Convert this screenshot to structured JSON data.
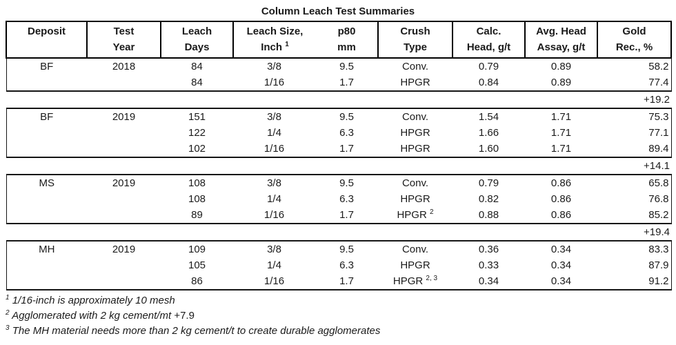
{
  "title": "Column Leach Test Summaries",
  "colors": {
    "text": "#1a1a1a",
    "border": "#000000",
    "background": "#ffffff"
  },
  "table": {
    "headers": [
      {
        "line1": "Deposit",
        "line2": ""
      },
      {
        "line1": "Test",
        "line2": "Year"
      },
      {
        "line1": "Leach",
        "line2": "Days"
      },
      {
        "line1": "Leach Size,",
        "line2": "Inch",
        "line2_sup": "1"
      },
      {
        "line1": "p80",
        "line2": "mm"
      },
      {
        "line1": "Crush",
        "line2": "Type"
      },
      {
        "line1": "Calc.",
        "line2": "Head, g/t"
      },
      {
        "line1": "Avg. Head",
        "line2": "Assay, g/t"
      },
      {
        "line1": "Gold",
        "line2": "Rec., %"
      }
    ],
    "groups": [
      {
        "deposit": "BF",
        "year": "2018",
        "rows": [
          {
            "days": "84",
            "size": "3/8",
            "p80": "9.5",
            "crush": "Conv.",
            "crush_sup": "",
            "calc_head": "0.79",
            "avg_head": "0.89",
            "gold_rec": "58.2"
          },
          {
            "days": "84",
            "size": "1/16",
            "p80": "1.7",
            "crush": "HPGR",
            "crush_sup": "",
            "calc_head": "0.84",
            "avg_head": "0.89",
            "gold_rec": "77.4"
          }
        ],
        "summary": "+19.2"
      },
      {
        "deposit": "BF",
        "year": "2019",
        "rows": [
          {
            "days": "151",
            "size": "3/8",
            "p80": "9.5",
            "crush": "Conv.",
            "crush_sup": "",
            "calc_head": "1.54",
            "avg_head": "1.71",
            "gold_rec": "75.3"
          },
          {
            "days": "122",
            "size": "1/4",
            "p80": "6.3",
            "crush": "HPGR",
            "crush_sup": "",
            "calc_head": "1.66",
            "avg_head": "1.71",
            "gold_rec": "77.1"
          },
          {
            "days": "102",
            "size": "1/16",
            "p80": "1.7",
            "crush": "HPGR",
            "crush_sup": "",
            "calc_head": "1.60",
            "avg_head": "1.71",
            "gold_rec": "89.4"
          }
        ],
        "summary": "+14.1"
      },
      {
        "deposit": "MS",
        "year": "2019",
        "rows": [
          {
            "days": "108",
            "size": "3/8",
            "p80": "9.5",
            "crush": "Conv.",
            "crush_sup": "",
            "calc_head": "0.79",
            "avg_head": "0.86",
            "gold_rec": "65.8"
          },
          {
            "days": "108",
            "size": "1/4",
            "p80": "6.3",
            "crush": "HPGR",
            "crush_sup": "",
            "calc_head": "0.82",
            "avg_head": "0.86",
            "gold_rec": "76.8"
          },
          {
            "days": "89",
            "size": "1/16",
            "p80": "1.7",
            "crush": "HPGR",
            "crush_sup": "2",
            "calc_head": "0.88",
            "avg_head": "0.86",
            "gold_rec": "85.2"
          }
        ],
        "summary": "+19.4"
      },
      {
        "deposit": "MH",
        "year": "2019",
        "rows": [
          {
            "days": "109",
            "size": "3/8",
            "p80": "9.5",
            "crush": "Conv.",
            "crush_sup": "",
            "calc_head": "0.36",
            "avg_head": "0.34",
            "gold_rec": "83.3"
          },
          {
            "days": "105",
            "size": "1/4",
            "p80": "6.3",
            "crush": "HPGR",
            "crush_sup": "",
            "calc_head": "0.33",
            "avg_head": "0.34",
            "gold_rec": "87.9"
          },
          {
            "days": "86",
            "size": "1/16",
            "p80": "1.7",
            "crush": "HPGR",
            "crush_sup": "2, 3",
            "calc_head": "0.34",
            "avg_head": "0.34",
            "gold_rec": "91.2"
          }
        ],
        "summary": null
      }
    ]
  },
  "footnotes": [
    {
      "sup": "1",
      "text": "1/16-inch is approximately 10 mesh",
      "suffix": ""
    },
    {
      "sup": "2",
      "text": "Agglomerated with 2 kg cement/mt",
      "suffix": "+7.9"
    },
    {
      "sup": "3",
      "text": "The MH material needs more than 2 kg cement/t to create durable agglomerates",
      "suffix": ""
    }
  ]
}
